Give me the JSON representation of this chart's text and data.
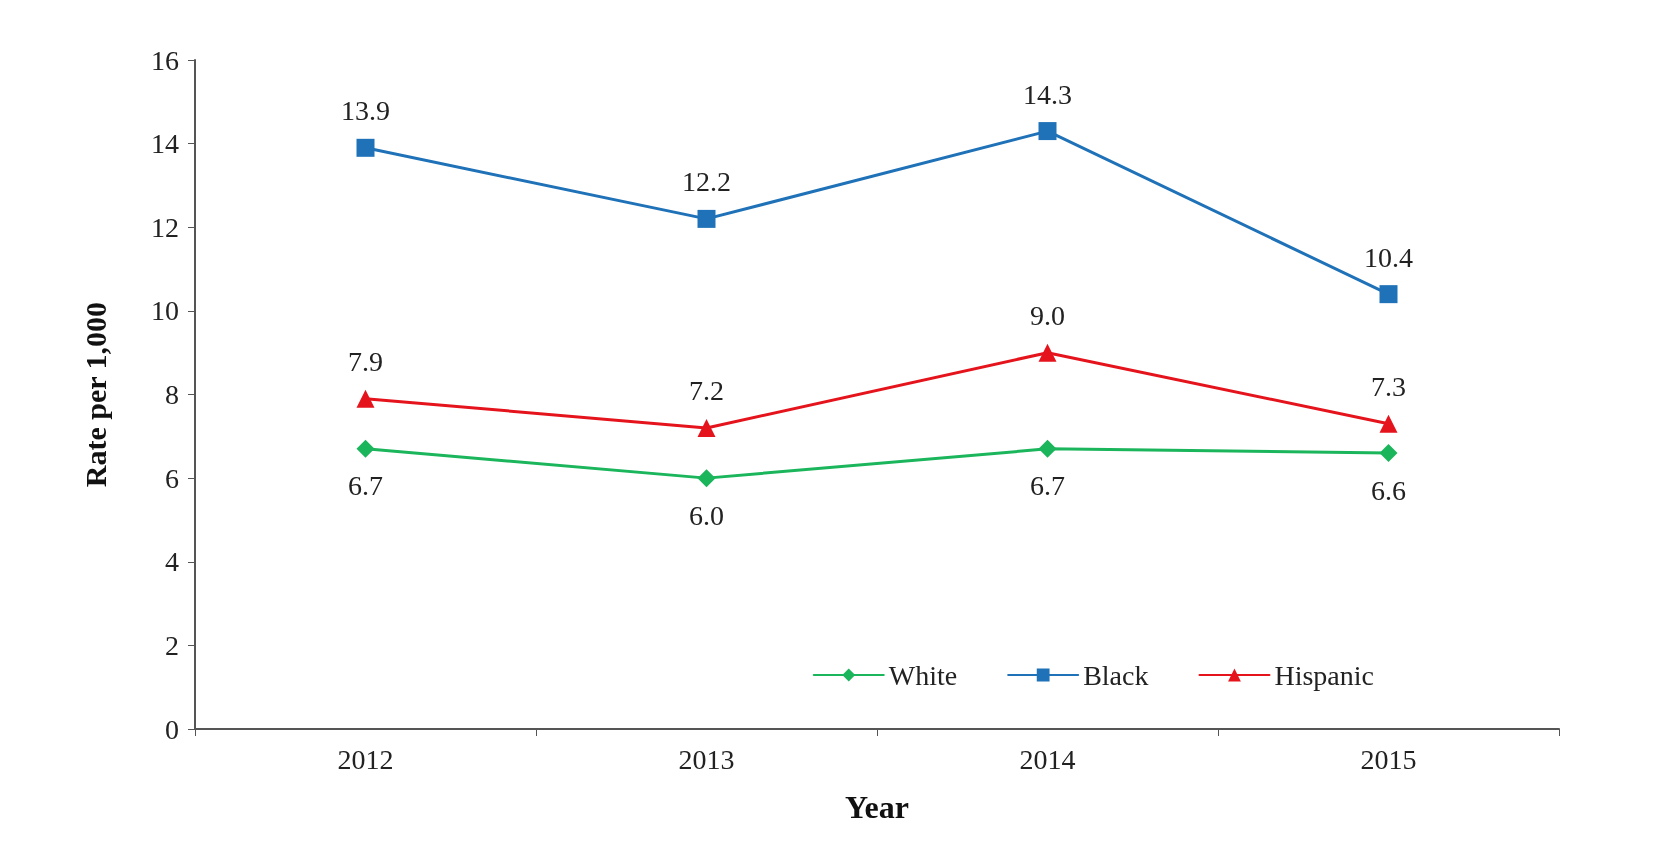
{
  "chart_data": {
    "type": "line",
    "xlabel": "Year",
    "ylabel": "Rate per 1,000",
    "categories": [
      "2012",
      "2013",
      "2014",
      "2015"
    ],
    "series": [
      {
        "name": "White",
        "color": "#1bb55c",
        "marker": "diamond",
        "values": [
          6.7,
          6.0,
          6.7,
          6.6
        ],
        "value_labels": [
          "6.7",
          "6.0",
          "6.7",
          "6.6"
        ]
      },
      {
        "name": "Black",
        "color": "#1f72b8",
        "marker": "square",
        "values": [
          13.9,
          12.2,
          14.3,
          10.4
        ],
        "value_labels": [
          "13.9",
          "12.2",
          "14.3",
          "10.4"
        ]
      },
      {
        "name": "Hispanic",
        "color": "#e5141c",
        "marker": "triangle",
        "values": [
          7.9,
          7.2,
          9.0,
          7.3
        ],
        "value_labels": [
          "7.9",
          "7.2",
          "9.0",
          "7.3"
        ]
      }
    ],
    "ylim": [
      0,
      16
    ],
    "yticks": [
      0,
      2,
      4,
      6,
      8,
      10,
      12,
      14,
      16
    ],
    "grid": false,
    "legend": "bottom right"
  }
}
